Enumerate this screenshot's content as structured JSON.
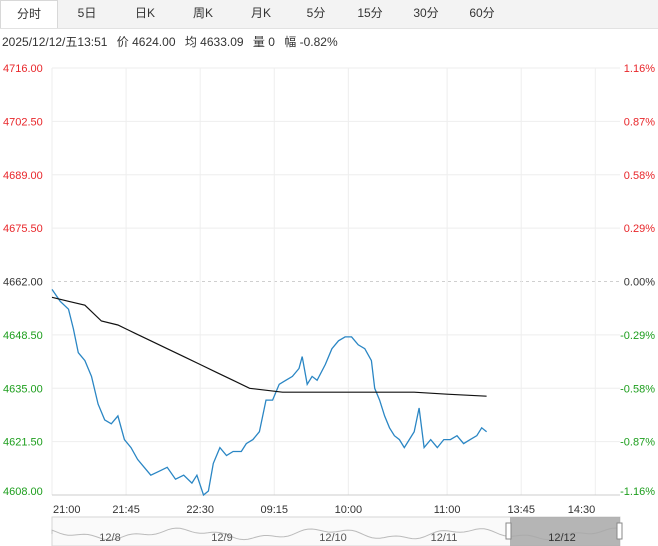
{
  "tabs": [
    {
      "label": "分时",
      "active": true
    },
    {
      "label": "5日"
    },
    {
      "label": "日K"
    },
    {
      "label": "周K"
    },
    {
      "label": "月K"
    },
    {
      "label": "5分"
    },
    {
      "label": "15分"
    },
    {
      "label": "30分"
    },
    {
      "label": "60分"
    }
  ],
  "info": {
    "datetime": "2025/12/12/五13:51",
    "price": "价 4624.00",
    "avg": "均 4633.09",
    "volume": "量 0",
    "change": "幅 -0.82%"
  },
  "colors": {
    "up": "#e8262a",
    "down": "#1d9e1d",
    "flat": "#333333",
    "price": "#2a86c4",
    "avg": "#111111"
  },
  "chart_data": {
    "type": "line",
    "ylim": [
      4608.0,
      4716.0
    ],
    "y_ticks": [
      "4716.00",
      "4702.50",
      "4689.00",
      "4675.50",
      "4662.00",
      "4648.50",
      "4635.00",
      "4621.50",
      "4608.00"
    ],
    "pct_ticks": [
      "1.16%",
      "0.87%",
      "0.58%",
      "0.29%",
      "0.00%",
      "-0.29%",
      "-0.58%",
      "-0.87%",
      "-1.16%"
    ],
    "prev_close": 4662.0,
    "x_ticks": [
      "21:00",
      "21:45",
      "22:30",
      "09:15",
      "10:00",
      "11:00",
      "13:45",
      "14:30"
    ],
    "x_tick_index": [
      0,
      45,
      90,
      135,
      180,
      240,
      285,
      330
    ],
    "total_minutes": 345,
    "series": [
      {
        "key": "price",
        "points": [
          [
            0,
            4660
          ],
          [
            5,
            4657
          ],
          [
            10,
            4655
          ],
          [
            13,
            4650
          ],
          [
            16,
            4644
          ],
          [
            20,
            4642
          ],
          [
            24,
            4638
          ],
          [
            28,
            4631
          ],
          [
            32,
            4627
          ],
          [
            36,
            4626
          ],
          [
            40,
            4628
          ],
          [
            44,
            4622
          ],
          [
            48,
            4620
          ],
          [
            52,
            4617
          ],
          [
            56,
            4615
          ],
          [
            60,
            4613
          ],
          [
            65,
            4614
          ],
          [
            70,
            4615
          ],
          [
            75,
            4612
          ],
          [
            80,
            4613
          ],
          [
            85,
            4611
          ],
          [
            88,
            4613
          ],
          [
            92,
            4608
          ],
          [
            95,
            4609
          ],
          [
            98,
            4616
          ],
          [
            102,
            4620
          ],
          [
            106,
            4618
          ],
          [
            110,
            4619
          ],
          [
            115,
            4619
          ],
          [
            118,
            4621
          ],
          [
            122,
            4622
          ],
          [
            126,
            4624
          ],
          [
            130,
            4632
          ],
          [
            134,
            4632
          ],
          [
            138,
            4636
          ],
          [
            142,
            4637
          ],
          [
            146,
            4638
          ],
          [
            150,
            4640
          ],
          [
            152,
            4643
          ],
          [
            155,
            4636
          ],
          [
            158,
            4638
          ],
          [
            161,
            4637
          ],
          [
            166,
            4641
          ],
          [
            170,
            4645
          ],
          [
            174,
            4647
          ],
          [
            178,
            4648
          ],
          [
            182,
            4648
          ],
          [
            186,
            4646
          ],
          [
            190,
            4645
          ],
          [
            194,
            4642
          ],
          [
            196,
            4635
          ],
          [
            199,
            4632
          ],
          [
            202,
            4628
          ],
          [
            205,
            4625
          ],
          [
            208,
            4623
          ],
          [
            211,
            4622
          ],
          [
            214,
            4620
          ],
          [
            217,
            4622
          ],
          [
            220,
            4624
          ],
          [
            223,
            4630
          ],
          [
            226,
            4620
          ],
          [
            230,
            4622
          ],
          [
            234,
            4620
          ],
          [
            238,
            4622
          ],
          [
            242,
            4622
          ],
          [
            246,
            4623
          ],
          [
            250,
            4621
          ],
          [
            254,
            4622
          ],
          [
            258,
            4623
          ],
          [
            261,
            4625
          ],
          [
            264,
            4624
          ]
        ]
      },
      {
        "key": "avg",
        "points": [
          [
            0,
            4658
          ],
          [
            10,
            4657
          ],
          [
            20,
            4656
          ],
          [
            30,
            4652
          ],
          [
            40,
            4651
          ],
          [
            50,
            4649
          ],
          [
            60,
            4647
          ],
          [
            70,
            4645
          ],
          [
            80,
            4643
          ],
          [
            90,
            4641
          ],
          [
            100,
            4639
          ],
          [
            110,
            4637
          ],
          [
            120,
            4635
          ],
          [
            140,
            4634
          ],
          [
            160,
            4634
          ],
          [
            180,
            4634
          ],
          [
            200,
            4634
          ],
          [
            220,
            4634
          ],
          [
            240,
            4633.5
          ],
          [
            264,
            4633
          ]
        ]
      }
    ]
  },
  "navigator": {
    "labels": [
      "12/8",
      "12/9",
      "12/10",
      "12/11",
      "12/12"
    ]
  }
}
